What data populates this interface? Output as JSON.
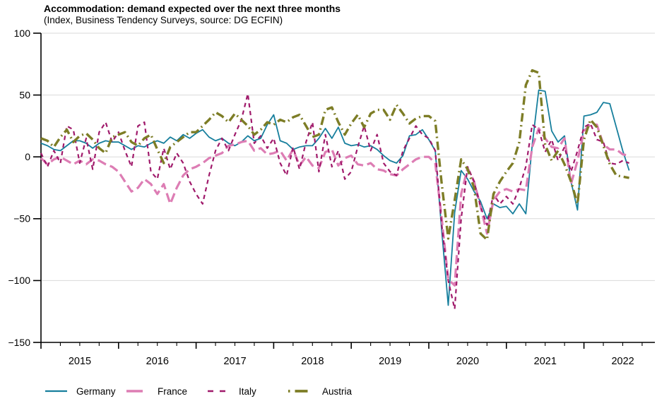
{
  "title": "Accommodation: demand expected over the next three months",
  "subtitle": "(Index, Business Tendency Surveys, source: DG ECFIN)",
  "chart_data": {
    "type": "line",
    "frequency": "monthly",
    "x_start": "2015-01",
    "x_end": "2022-08",
    "x_tick_years": [
      2015,
      2016,
      2017,
      2018,
      2019,
      2020,
      2021,
      2022
    ],
    "ylim": [
      -150,
      100
    ],
    "y_ticks": [
      100,
      50,
      0,
      -50,
      -100,
      -150
    ],
    "grid": "horizontal",
    "legend_position": "bottom",
    "axis_color": "#000000",
    "gridline_color": "#d9d9d9",
    "series": [
      {
        "name": "Germany",
        "color": "#177f9d",
        "style": "solid",
        "values": [
          11,
          9,
          6,
          5,
          9,
          13,
          13,
          11,
          7,
          11,
          13,
          12,
          12,
          9,
          6,
          9,
          8,
          11,
          13,
          11,
          16,
          13,
          18,
          15,
          19,
          22,
          16,
          13,
          15,
          11,
          9,
          12,
          17,
          13,
          15,
          26,
          34,
          13,
          11,
          6,
          8,
          9,
          9,
          15,
          23,
          15,
          24,
          11,
          9,
          10,
          8,
          9,
          6,
          1,
          -3,
          -5,
          1,
          17,
          18,
          22,
          14,
          5,
          -60,
          -120,
          -45,
          -11,
          -18,
          -28,
          -36,
          -50,
          -38,
          -41,
          -40,
          -46,
          -38,
          -46,
          10,
          54,
          53,
          21,
          12,
          17,
          -20,
          -43,
          33,
          34,
          36,
          44,
          43,
          24,
          5,
          -11
        ]
      },
      {
        "name": "France",
        "color": "#dd7db4",
        "style": "long-dash",
        "values": [
          -1,
          -6,
          -2,
          0,
          -3,
          -6,
          -3,
          -6,
          -2,
          -3,
          -6,
          -8,
          -12,
          -20,
          -28,
          -25,
          -18,
          -22,
          -30,
          -22,
          -38,
          -25,
          -15,
          -10,
          -8,
          -5,
          -1,
          1,
          3,
          9,
          10,
          12,
          13,
          5,
          7,
          2,
          3,
          5,
          -3,
          6,
          -7,
          0,
          -7,
          -9,
          4,
          6,
          -7,
          -1,
          1,
          -6,
          -7,
          -5,
          -10,
          -11,
          -14,
          -15,
          -10,
          -6,
          -2,
          0,
          0,
          -5,
          -50,
          -99,
          -104,
          -30,
          -9,
          -20,
          -40,
          -62,
          -35,
          -28,
          -26,
          -28,
          -26,
          -27,
          8,
          23,
          15,
          8,
          7,
          15,
          -22,
          -3,
          21,
          26,
          26,
          10,
          6,
          6,
          2,
          1
        ]
      },
      {
        "name": "Italy",
        "color": "#a01a6b",
        "style": "dash",
        "values": [
          3,
          -8,
          5,
          -5,
          25,
          22,
          -5,
          15,
          -10,
          20,
          28,
          12,
          20,
          5,
          -8,
          25,
          28,
          -12,
          -18,
          7,
          -10,
          3,
          -5,
          -20,
          -30,
          -38,
          -15,
          5,
          15,
          5,
          18,
          30,
          51,
          11,
          17,
          7,
          15,
          -5,
          -15,
          8,
          -10,
          12,
          28,
          -12,
          18,
          -8,
          5,
          -18,
          -12,
          8,
          25,
          5,
          18,
          -5,
          -12,
          -15,
          5,
          15,
          25,
          18,
          15,
          5,
          -55,
          -100,
          -123,
          -50,
          -8,
          -20,
          -40,
          -55,
          -30,
          -38,
          -32,
          -38,
          -25,
          -8,
          26,
          22,
          4,
          14,
          -3,
          8,
          -12,
          5,
          24,
          27,
          14,
          12,
          -5,
          -6,
          -3,
          -5
        ]
      },
      {
        "name": "Austria",
        "color": "#7d7d26",
        "style": "dash-dot",
        "values": [
          15,
          13,
          8,
          16,
          22,
          12,
          17,
          19,
          14,
          7,
          3,
          16,
          18,
          20,
          12,
          9,
          15,
          18,
          6,
          -5,
          8,
          12,
          16,
          20,
          20,
          25,
          30,
          36,
          33,
          28,
          35,
          30,
          25,
          18,
          22,
          28,
          26,
          30,
          28,
          32,
          34,
          25,
          16,
          18,
          38,
          40,
          28,
          18,
          27,
          34,
          24,
          35,
          38,
          38,
          30,
          42,
          35,
          27,
          31,
          33,
          33,
          29,
          -22,
          -66,
          -35,
          -2,
          -10,
          -25,
          -62,
          -67,
          -30,
          -20,
          -12,
          -5,
          12,
          58,
          70,
          68,
          10,
          -3,
          5,
          -6,
          -20,
          -38,
          14,
          30,
          24,
          9,
          -6,
          -15,
          -16,
          -17
        ]
      }
    ]
  }
}
